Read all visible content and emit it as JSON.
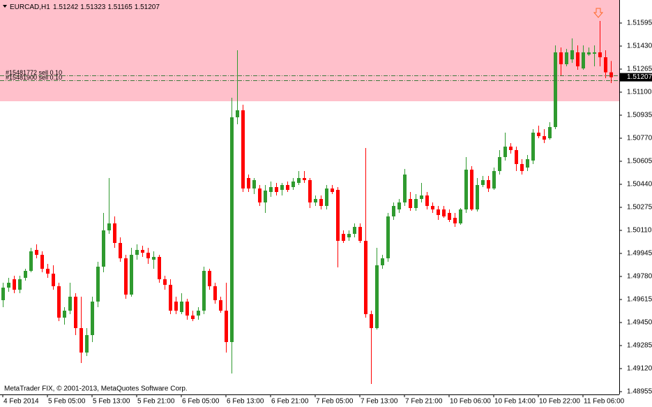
{
  "chart_data": {
    "type": "candlestick",
    "title": "EURCAD,H1",
    "copyright": "MetaTrader FIX, © 2001-2013, MetaQuotes Software Corp.",
    "categories": [
      "4 Feb 2014",
      null,
      null,
      null,
      null,
      null,
      null,
      null,
      "5 Feb 05:00",
      null,
      null,
      null,
      null,
      null,
      null,
      null,
      "5 Feb 13:00",
      null,
      null,
      null,
      null,
      null,
      null,
      null,
      "5 Feb 21:00",
      null,
      null,
      null,
      null,
      null,
      null,
      null,
      "6 Feb 05:00",
      null,
      null,
      null,
      null,
      null,
      null,
      null,
      "6 Feb 13:00",
      null,
      null,
      null,
      null,
      null,
      null,
      null,
      "6 Feb 21:00",
      null,
      null,
      null,
      null,
      null,
      null,
      null,
      "7 Feb 05:00",
      null,
      null,
      null,
      null,
      null,
      null,
      null,
      "7 Feb 13:00",
      null,
      null,
      null,
      null,
      null,
      null,
      null,
      "7 Feb 21:00",
      null,
      null,
      null,
      null,
      null,
      null,
      null,
      "10 Feb 06:00",
      null,
      null,
      null,
      null,
      null,
      null,
      null,
      "10 Feb 14:00",
      null,
      null,
      null,
      null,
      null,
      null,
      null,
      "10 Feb 22:00",
      null,
      null,
      null,
      null,
      null,
      null,
      null,
      "11 Feb 06:00",
      null,
      null,
      null,
      null,
      null
    ],
    "open": [
      1.4961,
      1.497,
      1.4976,
      1.49685,
      1.4977,
      1.4982,
      1.4997,
      1.49935,
      1.49835,
      1.498,
      1.4971,
      1.49485,
      1.49535,
      1.49635,
      1.4941,
      1.49235,
      1.4936,
      1.496,
      1.4985,
      1.5011,
      1.5016,
      1.5002,
      1.4991,
      1.4965,
      1.49935,
      1.4997,
      1.4995,
      1.499,
      1.4992,
      1.4976,
      1.4972,
      1.496,
      1.49525,
      1.496,
      1.495,
      1.495,
      1.49535,
      1.4982,
      1.4971,
      1.4961,
      1.49535,
      1.4931,
      1.5092,
      1.5097,
      1.50485,
      1.5041,
      1.5041,
      1.5031,
      1.50385,
      1.5042,
      1.504,
      1.50435,
      1.5042,
      1.5045,
      1.50485,
      1.5047,
      1.5031,
      1.50335,
      1.50285,
      1.5041,
      1.504,
      1.50085,
      1.5006,
      1.50085,
      1.50135,
      1.50035,
      1.4951,
      1.4941,
      1.4986,
      1.4991,
      1.5021,
      1.5026,
      1.5031,
      1.50335,
      1.5027,
      1.50335,
      1.5036,
      1.50285,
      1.5026,
      1.5026,
      1.50235,
      1.502,
      1.5016,
      1.5026,
      1.50545,
      1.5026,
      1.50435,
      1.5047,
      1.5041,
      1.50535,
      1.50635,
      1.5071,
      1.50685,
      1.50585,
      1.5056,
      1.5061,
      1.5081,
      1.50785,
      1.5077,
      1.5085,
      1.51385,
      1.513,
      1.51335,
      1.51385,
      1.5127,
      1.5137,
      1.51375,
      1.51385,
      1.5135,
      1.51242
    ],
    "high": [
      1.49735,
      1.4977,
      1.49785,
      1.49785,
      1.49835,
      1.49985,
      1.5001,
      1.4996,
      1.4987,
      1.4986,
      1.49735,
      1.4956,
      1.49735,
      1.4966,
      1.49635,
      1.4941,
      1.49635,
      1.49885,
      1.50235,
      1.50485,
      1.5021,
      1.5006,
      1.49935,
      1.49985,
      1.5001,
      1.5,
      1.49985,
      1.4996,
      1.49935,
      1.49785,
      1.4976,
      1.49635,
      1.4966,
      1.4962,
      1.49535,
      1.4956,
      1.4985,
      1.49835,
      1.49735,
      1.49635,
      1.49735,
      1.5106,
      1.514,
      1.5101,
      1.5051,
      1.50485,
      1.50435,
      1.50435,
      1.5046,
      1.5045,
      1.5045,
      1.5046,
      1.50485,
      1.50535,
      1.50535,
      1.50485,
      1.5036,
      1.5036,
      1.50435,
      1.50435,
      1.5042,
      1.5011,
      1.5011,
      1.5016,
      1.5016,
      1.507,
      1.49535,
      1.49985,
      1.49935,
      1.50235,
      1.5031,
      1.50335,
      1.5055,
      1.50385,
      1.5037,
      1.5045,
      1.50385,
      1.5031,
      1.50285,
      1.50285,
      1.5026,
      1.50235,
      1.5027,
      1.50635,
      1.5057,
      1.50485,
      1.505,
      1.505,
      1.5056,
      1.50685,
      1.5081,
      1.50735,
      1.5071,
      1.5062,
      1.5065,
      1.50835,
      1.5086,
      1.50835,
      1.50885,
      1.51435,
      1.5142,
      1.5141,
      1.51485,
      1.51435,
      1.51435,
      1.5142,
      1.51435,
      1.5161,
      1.514,
      1.51323
    ],
    "low": [
      1.4956,
      1.4967,
      1.4966,
      1.4966,
      1.4975,
      1.4981,
      1.4991,
      1.4981,
      1.4977,
      1.49685,
      1.4946,
      1.49435,
      1.4951,
      1.4936,
      1.4916,
      1.4921,
      1.4931,
      1.4956,
      1.4981,
      1.50085,
      1.49985,
      1.49885,
      1.4962,
      1.49635,
      1.499,
      1.4992,
      1.4987,
      1.49835,
      1.49735,
      1.49685,
      1.4951,
      1.4951,
      1.4951,
      1.4947,
      1.4946,
      1.4947,
      1.4951,
      1.49685,
      1.49585,
      1.4952,
      1.49235,
      1.49085,
      1.5087,
      1.50385,
      1.50385,
      1.5037,
      1.50285,
      1.50235,
      1.5035,
      1.5036,
      1.5036,
      1.50385,
      1.504,
      1.50435,
      1.5045,
      1.5027,
      1.50285,
      1.5026,
      1.5026,
      1.5037,
      1.49845,
      1.5002,
      1.50035,
      1.5006,
      1.5002,
      1.49485,
      1.4901,
      1.494,
      1.49835,
      1.49885,
      1.50185,
      1.50235,
      1.50285,
      1.5025,
      1.5025,
      1.5031,
      1.5026,
      1.50235,
      1.50185,
      1.502,
      1.5017,
      1.50135,
      1.5015,
      1.50235,
      1.5025,
      1.50245,
      1.5042,
      1.50385,
      1.504,
      1.5051,
      1.5061,
      1.5066,
      1.50535,
      1.5051,
      1.50535,
      1.50585,
      1.5077,
      1.50735,
      1.5076,
      1.50835,
      1.5122,
      1.51285,
      1.5131,
      1.5126,
      1.5126,
      1.5136,
      1.51285,
      1.51285,
      1.512,
      1.51165
    ],
    "close": [
      1.497,
      1.49735,
      1.49685,
      1.4976,
      1.4982,
      1.4996,
      1.49935,
      1.49835,
      1.498,
      1.4971,
      1.49485,
      1.49535,
      1.49635,
      1.4941,
      1.49235,
      1.4936,
      1.496,
      1.4985,
      1.5011,
      1.5016,
      1.5002,
      1.4991,
      1.4965,
      1.49935,
      1.4997,
      1.4995,
      1.4991,
      1.4992,
      1.4976,
      1.4972,
      1.49535,
      1.49535,
      1.496,
      1.495,
      1.49475,
      1.49535,
      1.4982,
      1.4971,
      1.4961,
      1.49535,
      1.4931,
      1.5092,
      1.5097,
      1.5041,
      1.5041,
      1.5047,
      1.5031,
      1.50395,
      1.5042,
      1.50385,
      1.50435,
      1.504,
      1.5046,
      1.50485,
      1.5047,
      1.5031,
      1.50335,
      1.50285,
      1.5041,
      1.50385,
      1.50035,
      1.50035,
      1.50085,
      1.50135,
      1.50035,
      1.4951,
      1.4941,
      1.4986,
      1.4991,
      1.5021,
      1.50285,
      1.5031,
      1.5051,
      1.5027,
      1.50335,
      1.5036,
      1.50285,
      1.5026,
      1.5022,
      1.5021,
      1.50185,
      1.5016,
      1.5026,
      1.50545,
      1.5026,
      1.50435,
      1.5047,
      1.5041,
      1.50535,
      1.50635,
      1.5071,
      1.50685,
      1.50585,
      1.50535,
      1.5062,
      1.5081,
      1.50785,
      1.5076,
      1.5085,
      1.51385,
      1.513,
      1.51385,
      1.514,
      1.51285,
      1.51385,
      1.51385,
      1.51385,
      1.5135,
      1.51242,
      1.51207
    ],
    "up_color": "#2f9a2f",
    "down_color": "#ff0000",
    "ylim": [
      1.48935,
      1.5176
    ],
    "yticks": [
      1.51595,
      {
        "value": 1.5143,
        "label": "1.51430"
      },
      1.51265,
      {
        "value": 1.511,
        "label": "1.51100"
      },
      1.50935,
      {
        "value": 1.5077,
        "label": "1.50770"
      },
      1.50605,
      {
        "value": 1.5044,
        "label": "1.50440"
      },
      1.50275,
      {
        "value": 1.5011,
        "label": "1.50110"
      },
      1.49945,
      {
        "value": 1.4978,
        "label": "1.49780"
      },
      1.49615,
      {
        "value": 1.4945,
        "label": "1.49450"
      },
      1.49285,
      {
        "value": 1.4912,
        "label": "1.49120"
      },
      1.48955
    ],
    "zone": {
      "low": 1.51035,
      "color": "#ffc0cb"
    },
    "orders": [
      {
        "label": "#15481772 sell 0.10",
        "price": 1.5122
      },
      {
        "label": "#15481900 sell 0.10",
        "price": 1.51185
      }
    ],
    "order_color": "#3d7a3d"
  }
}
